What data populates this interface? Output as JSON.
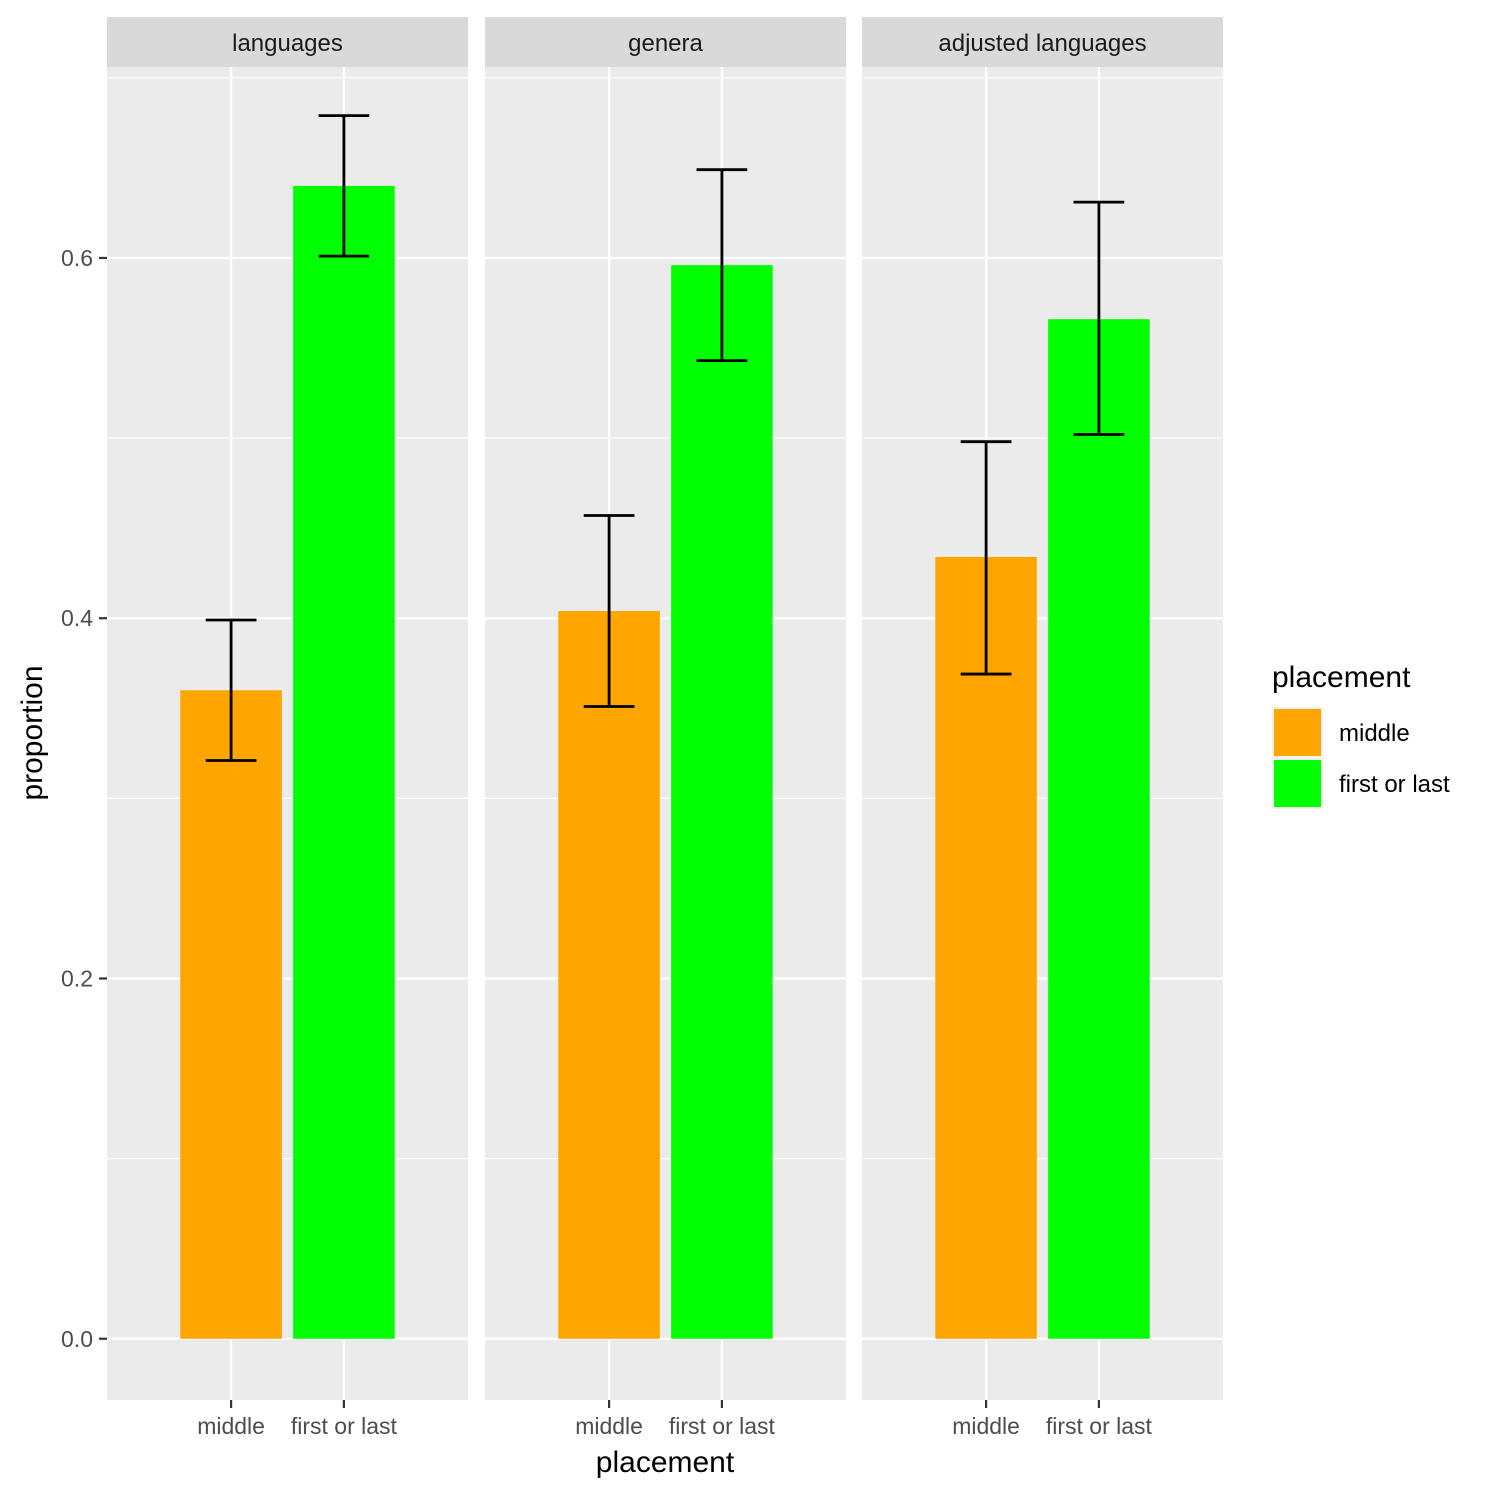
{
  "chart_data": {
    "type": "bar",
    "facet_by": "source",
    "facets": [
      {
        "title": "languages",
        "bars": [
          {
            "category": "middle",
            "value": 0.36,
            "ci_low": 0.321,
            "ci_high": 0.399
          },
          {
            "category": "first or last",
            "value": 0.64,
            "ci_low": 0.601,
            "ci_high": 0.679
          }
        ]
      },
      {
        "title": "genera",
        "bars": [
          {
            "category": "middle",
            "value": 0.404,
            "ci_low": 0.351,
            "ci_high": 0.457
          },
          {
            "category": "first or last",
            "value": 0.596,
            "ci_low": 0.543,
            "ci_high": 0.649
          }
        ]
      },
      {
        "title": "adjusted languages",
        "bars": [
          {
            "category": "middle",
            "value": 0.434,
            "ci_low": 0.369,
            "ci_high": 0.498
          },
          {
            "category": "first or last",
            "value": 0.566,
            "ci_low": 0.502,
            "ci_high": 0.631
          }
        ]
      }
    ],
    "categories": [
      "middle",
      "first or last"
    ],
    "xlabel": "placement",
    "ylabel": "proportion",
    "ylim": [
      -0.034,
      0.706
    ],
    "yticks": [
      "0.0",
      "0.2",
      "0.4",
      "0.6"
    ],
    "ytick_values": [
      0.0,
      0.2,
      0.4,
      0.6
    ],
    "yminor": [
      0.1,
      0.3,
      0.5,
      0.7
    ],
    "grid": true,
    "legend": {
      "title": "placement",
      "position": "right",
      "items": [
        {
          "label": "middle",
          "color": "#FFA500"
        },
        {
          "label": "first or last",
          "color": "#00FF00"
        }
      ]
    },
    "colors": {
      "middle": "#FFA500",
      "first or last": "#00FF00",
      "panel_bg": "#EBEBEB",
      "strip_bg": "#D9D9D9",
      "grid": "#FFFFFF",
      "errorbar": "#000000"
    }
  }
}
